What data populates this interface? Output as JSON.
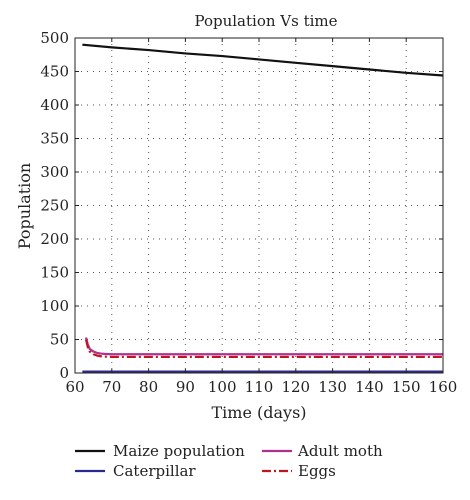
{
  "chart_data": {
    "type": "line",
    "title": "Population Vs time",
    "xlabel": "Time (days)",
    "ylabel": "Population",
    "xlim": [
      60,
      160
    ],
    "ylim": [
      0,
      500
    ],
    "xticks": [
      60,
      70,
      80,
      90,
      100,
      110,
      120,
      130,
      140,
      150,
      160
    ],
    "yticks": [
      0,
      50,
      100,
      150,
      200,
      250,
      300,
      350,
      400,
      450,
      500
    ],
    "grid": true,
    "legend_position": "bottom",
    "series": [
      {
        "name": "Maize population",
        "color": "#111111",
        "style": "solid",
        "x": [
          62,
          70,
          80,
          90,
          100,
          110,
          120,
          130,
          140,
          150,
          160
        ],
        "y": [
          490,
          486,
          482,
          477,
          473,
          468,
          463,
          458,
          453,
          448,
          444
        ]
      },
      {
        "name": "Adult moth",
        "color": "#b0308e",
        "style": "solid",
        "x": [
          63,
          63.5,
          64,
          65,
          66,
          67,
          68,
          70,
          75,
          80,
          90,
          100,
          120,
          140,
          160
        ],
        "y": [
          53,
          42,
          36,
          32,
          30,
          29,
          28.5,
          28,
          28,
          28,
          28,
          28,
          28,
          28,
          28
        ]
      },
      {
        "name": "Caterpillar",
        "color": "#2b2a8c",
        "style": "solid",
        "x": [
          62,
          160
        ],
        "y": [
          2,
          2
        ]
      },
      {
        "name": "Eggs",
        "color": "#c0141e",
        "style": "dashdot",
        "x": [
          63,
          63.5,
          64,
          65,
          66,
          67,
          68,
          70,
          75,
          80,
          90,
          100,
          120,
          140,
          160
        ],
        "y": [
          50,
          38,
          32,
          28,
          26,
          25,
          24.5,
          24,
          24,
          24,
          24,
          24,
          24,
          24,
          24
        ]
      }
    ],
    "legend": {
      "col1": [
        "Maize population",
        "Caterpillar"
      ],
      "col2": [
        "Adult moth",
        "Eggs"
      ]
    }
  }
}
